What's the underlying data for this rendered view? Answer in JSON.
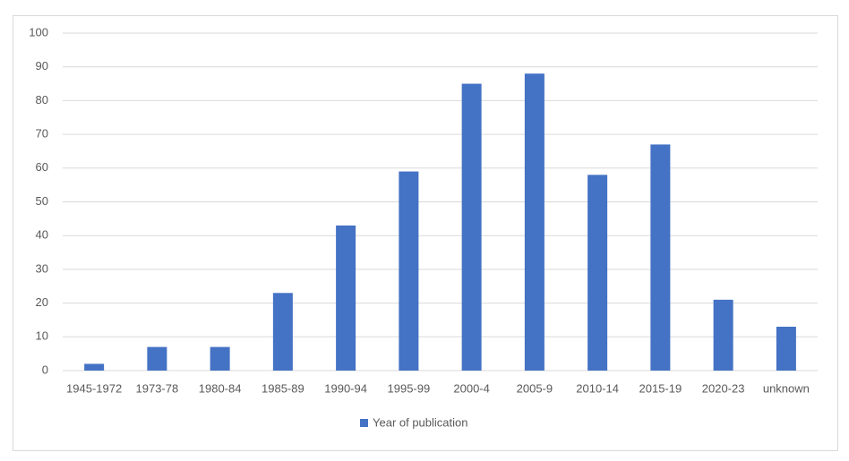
{
  "chart_data": {
    "type": "bar",
    "categories": [
      "1945-1972",
      "1973-78",
      "1980-84",
      "1985-89",
      "1990-94",
      "1995-99",
      "2000-4",
      "2005-9",
      "2010-14",
      "2015-19",
      "2020-23",
      "unknown"
    ],
    "series": [
      {
        "name": "Year of publication",
        "color": "#4472c4",
        "values": [
          2,
          7,
          7,
          23,
          43,
          59,
          85,
          88,
          58,
          67,
          21,
          13
        ]
      }
    ],
    "ylim": [
      0,
      100
    ],
    "yticks": [
      0,
      10,
      20,
      30,
      40,
      50,
      60,
      70,
      80,
      90,
      100
    ],
    "grid": true,
    "legend": "bottom"
  }
}
